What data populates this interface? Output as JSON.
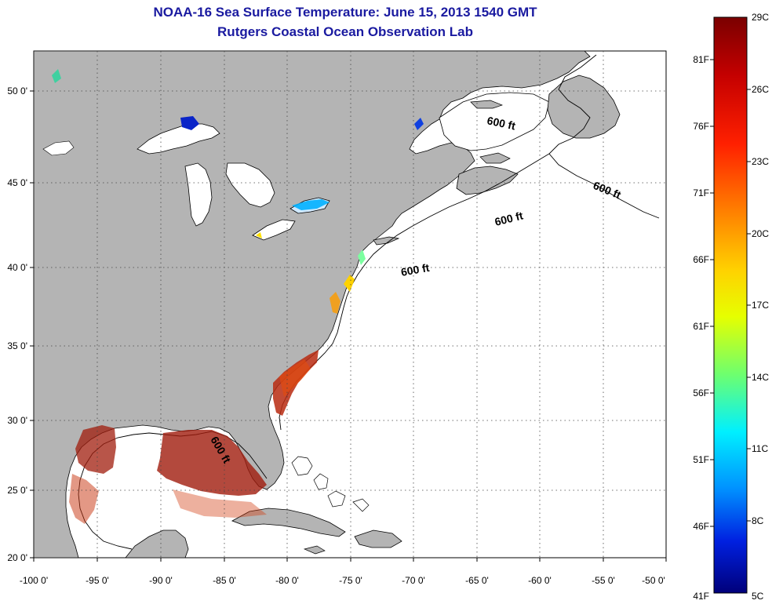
{
  "title": "NOAA-16 Sea Surface Temperature:  June 15, 2013 1540 GMT",
  "subtitle": "Rutgers Coastal Ocean Observation Lab",
  "lon_ticks": [
    "-100 0'",
    "-95 0'",
    "-90 0'",
    "-85 0'",
    "-80 0'",
    "-75 0'",
    "-70 0'",
    "-65 0'",
    "-60 0'",
    "-55 0'",
    "-50 0'"
  ],
  "lat_ticks": [
    "50 0'",
    "45 0'",
    "40 0'",
    "35 0'",
    "30 0'",
    "25 0'",
    "20 0'"
  ],
  "contour_label": "600 ft",
  "colorbar": {
    "celsius": [
      "29C",
      "26C",
      "23C",
      "20C",
      "17C",
      "14C",
      "11C",
      "8C",
      "5C"
    ],
    "fahrenheit": [
      "81F",
      "76F",
      "71F",
      "66F",
      "61F",
      "56F",
      "51F",
      "46F",
      "41F"
    ]
  },
  "colors": {
    "land": "#b4b4b4",
    "ocean": "#ffffff",
    "title": "#1a1aa0",
    "grid": "#444444"
  }
}
